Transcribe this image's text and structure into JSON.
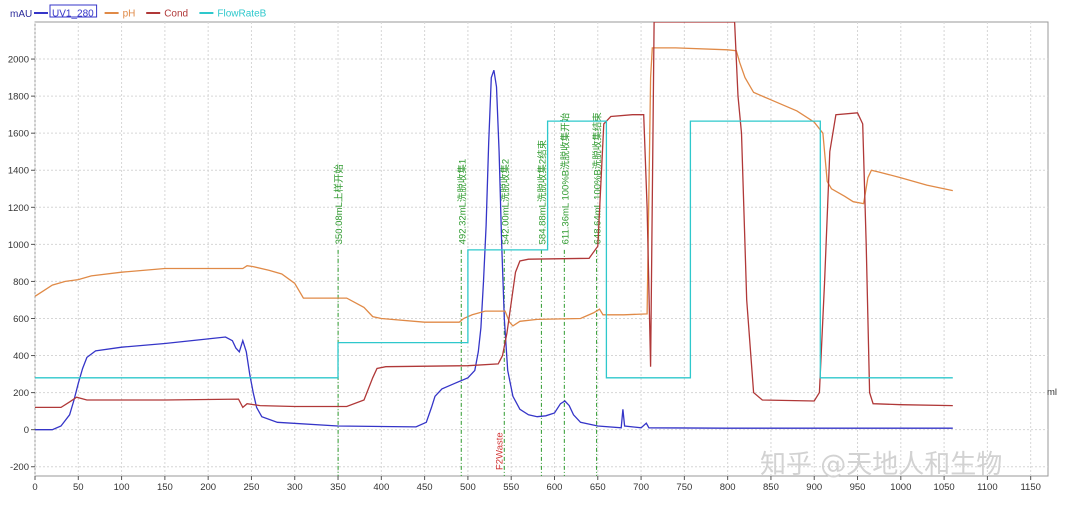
{
  "chart_data": {
    "type": "line",
    "y_unit_label": "mAU",
    "x_unit_label": "ml",
    "xlim": [
      0,
      1170
    ],
    "ylim": [
      -250,
      2200
    ],
    "x_ticks": [
      0,
      50,
      100,
      150,
      200,
      250,
      300,
      350,
      400,
      450,
      500,
      550,
      600,
      650,
      700,
      750,
      800,
      850,
      900,
      950,
      1000,
      1050,
      1100,
      1150
    ],
    "y_ticks": [
      -200,
      0,
      200,
      400,
      600,
      800,
      1000,
      1200,
      1400,
      1600,
      1800,
      2000
    ],
    "grid": true,
    "legend_position": "top-left",
    "series": [
      {
        "name": "UV1_280",
        "color": "#3535c8",
        "points": [
          [
            0,
            0
          ],
          [
            20,
            0
          ],
          [
            30,
            20
          ],
          [
            40,
            80
          ],
          [
            45,
            160
          ],
          [
            50,
            250
          ],
          [
            55,
            330
          ],
          [
            60,
            390
          ],
          [
            70,
            425
          ],
          [
            100,
            445
          ],
          [
            150,
            465
          ],
          [
            200,
            490
          ],
          [
            220,
            500
          ],
          [
            228,
            480
          ],
          [
            232,
            440
          ],
          [
            236,
            420
          ],
          [
            240,
            480
          ],
          [
            244,
            420
          ],
          [
            248,
            300
          ],
          [
            252,
            200
          ],
          [
            256,
            120
          ],
          [
            262,
            70
          ],
          [
            280,
            40
          ],
          [
            350,
            20
          ],
          [
            440,
            15
          ],
          [
            452,
            40
          ],
          [
            458,
            120
          ],
          [
            462,
            180
          ],
          [
            470,
            220
          ],
          [
            485,
            250
          ],
          [
            500,
            280
          ],
          [
            508,
            320
          ],
          [
            512,
            420
          ],
          [
            515,
            550
          ],
          [
            518,
            800
          ],
          [
            521,
            1100
          ],
          [
            524,
            1550
          ],
          [
            527,
            1900
          ],
          [
            530,
            1940
          ],
          [
            533,
            1850
          ],
          [
            536,
            1500
          ],
          [
            539,
            1000
          ],
          [
            542,
            600
          ],
          [
            546,
            320
          ],
          [
            552,
            180
          ],
          [
            560,
            110
          ],
          [
            570,
            80
          ],
          [
            580,
            70
          ],
          [
            590,
            75
          ],
          [
            600,
            90
          ],
          [
            607,
            140
          ],
          [
            612,
            155
          ],
          [
            617,
            130
          ],
          [
            622,
            80
          ],
          [
            630,
            40
          ],
          [
            650,
            20
          ],
          [
            677,
            10
          ],
          [
            679,
            110
          ],
          [
            681,
            20
          ],
          [
            700,
            10
          ],
          [
            706,
            35
          ],
          [
            709,
            10
          ],
          [
            800,
            8
          ],
          [
            1060,
            8
          ]
        ]
      },
      {
        "name": "pH",
        "color": "#e08a47",
        "points": [
          [
            0,
            720
          ],
          [
            10,
            750
          ],
          [
            20,
            780
          ],
          [
            35,
            800
          ],
          [
            50,
            810
          ],
          [
            65,
            830
          ],
          [
            100,
            850
          ],
          [
            150,
            870
          ],
          [
            200,
            870
          ],
          [
            240,
            870
          ],
          [
            245,
            885
          ],
          [
            252,
            880
          ],
          [
            270,
            860
          ],
          [
            285,
            840
          ],
          [
            300,
            790
          ],
          [
            310,
            710
          ],
          [
            360,
            710
          ],
          [
            380,
            660
          ],
          [
            390,
            610
          ],
          [
            400,
            600
          ],
          [
            450,
            580
          ],
          [
            490,
            580
          ],
          [
            495,
            600
          ],
          [
            505,
            620
          ],
          [
            520,
            640
          ],
          [
            543,
            640
          ],
          [
            548,
            580
          ],
          [
            552,
            560
          ],
          [
            560,
            585
          ],
          [
            580,
            595
          ],
          [
            630,
            600
          ],
          [
            645,
            630
          ],
          [
            652,
            650
          ],
          [
            656,
            620
          ],
          [
            680,
            620
          ],
          [
            707,
            625
          ],
          [
            711,
            1900
          ],
          [
            713,
            2060
          ],
          [
            740,
            2060
          ],
          [
            800,
            2050
          ],
          [
            810,
            2045
          ],
          [
            814,
            1980
          ],
          [
            820,
            1900
          ],
          [
            830,
            1820
          ],
          [
            850,
            1780
          ],
          [
            880,
            1720
          ],
          [
            900,
            1660
          ],
          [
            910,
            1600
          ],
          [
            915,
            1340
          ],
          [
            920,
            1300
          ],
          [
            935,
            1260
          ],
          [
            945,
            1230
          ],
          [
            957,
            1220
          ],
          [
            962,
            1360
          ],
          [
            966,
            1400
          ],
          [
            975,
            1390
          ],
          [
            1000,
            1360
          ],
          [
            1030,
            1320
          ],
          [
            1060,
            1290
          ]
        ]
      },
      {
        "name": "Cond",
        "color": "#b03838",
        "points": [
          [
            0,
            120
          ],
          [
            30,
            120
          ],
          [
            40,
            150
          ],
          [
            48,
            175
          ],
          [
            60,
            160
          ],
          [
            150,
            160
          ],
          [
            235,
            165
          ],
          [
            240,
            120
          ],
          [
            245,
            140
          ],
          [
            260,
            130
          ],
          [
            300,
            125
          ],
          [
            360,
            125
          ],
          [
            380,
            160
          ],
          [
            390,
            280
          ],
          [
            395,
            330
          ],
          [
            405,
            340
          ],
          [
            500,
            345
          ],
          [
            535,
            355
          ],
          [
            540,
            400
          ],
          [
            545,
            520
          ],
          [
            555,
            850
          ],
          [
            560,
            910
          ],
          [
            570,
            920
          ],
          [
            640,
            925
          ],
          [
            650,
            990
          ],
          [
            657,
            1650
          ],
          [
            665,
            1690
          ],
          [
            690,
            1700
          ],
          [
            703,
            1700
          ],
          [
            707,
            1200
          ],
          [
            711,
            340
          ],
          [
            715,
            2200
          ],
          [
            808,
            2200
          ],
          [
            812,
            1800
          ],
          [
            816,
            1600
          ],
          [
            822,
            700
          ],
          [
            830,
            200
          ],
          [
            840,
            160
          ],
          [
            900,
            155
          ],
          [
            906,
            200
          ],
          [
            912,
            800
          ],
          [
            918,
            1500
          ],
          [
            925,
            1700
          ],
          [
            950,
            1710
          ],
          [
            956,
            1650
          ],
          [
            960,
            1000
          ],
          [
            964,
            200
          ],
          [
            968,
            140
          ],
          [
            1000,
            135
          ],
          [
            1060,
            130
          ]
        ]
      },
      {
        "name": "FlowRateB",
        "color": "#2ec8cc",
        "points": [
          [
            0,
            280
          ],
          [
            350,
            280
          ],
          [
            350,
            470
          ],
          [
            500,
            470
          ],
          [
            500,
            970
          ],
          [
            592,
            970
          ],
          [
            592,
            1665
          ],
          [
            660,
            1665
          ],
          [
            660,
            280
          ],
          [
            757,
            280
          ],
          [
            757,
            1665
          ],
          [
            907,
            1665
          ],
          [
            907,
            280
          ],
          [
            1060,
            280
          ]
        ]
      }
    ],
    "markers": [
      {
        "x": 350.08,
        "label": "350.08mL上样开始"
      },
      {
        "x": 492.32,
        "label": "492.32mL洗脱收集1"
      },
      {
        "x": 542.0,
        "label": "542.00mL洗脱收集2"
      },
      {
        "x": 584.88,
        "label": "584.88mL洗脱收集2结束"
      },
      {
        "x": 611.36,
        "label": "611.36mL 100%B洗脱收集开始"
      },
      {
        "x": 648.64,
        "label": "648.64mL 100%B洗脱收集结束"
      }
    ],
    "fraction_label": {
      "x": 542.0,
      "text": "F2Waste"
    }
  },
  "watermark": "知乎 @天地人和生物"
}
